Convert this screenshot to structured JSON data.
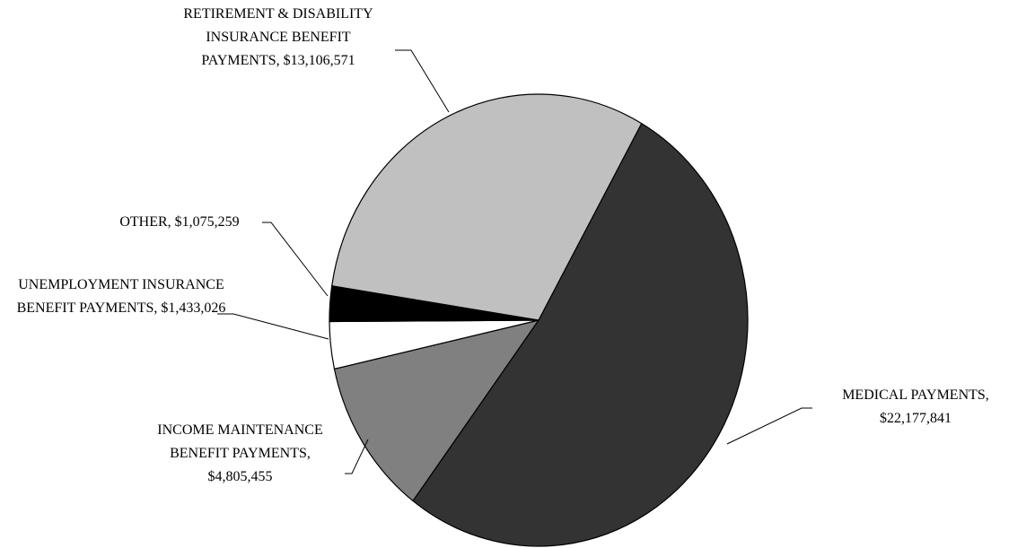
{
  "chart_data": {
    "type": "pie",
    "categories": [
      "MEDICAL PAYMENTS,",
      "INCOME MAINTENANCE BENEFIT PAYMENTS,",
      "UNEMPLOYMENT INSURANCE BENEFIT PAYMENTS,",
      "OTHER,",
      "RETIREMENT & DISABILITY INSURANCE BENEFIT PAYMENTS,"
    ],
    "values": [
      22177841,
      4805455,
      1433026,
      1075259,
      13106571
    ],
    "value_labels": [
      "$22,177,841",
      "$4,805,455",
      "$1,433,026",
      "$1,075,259",
      "$13,106,571"
    ],
    "colors": [
      "#333333",
      "#808080",
      "#ffffff",
      "#000000",
      "#c0c0c0"
    ]
  }
}
